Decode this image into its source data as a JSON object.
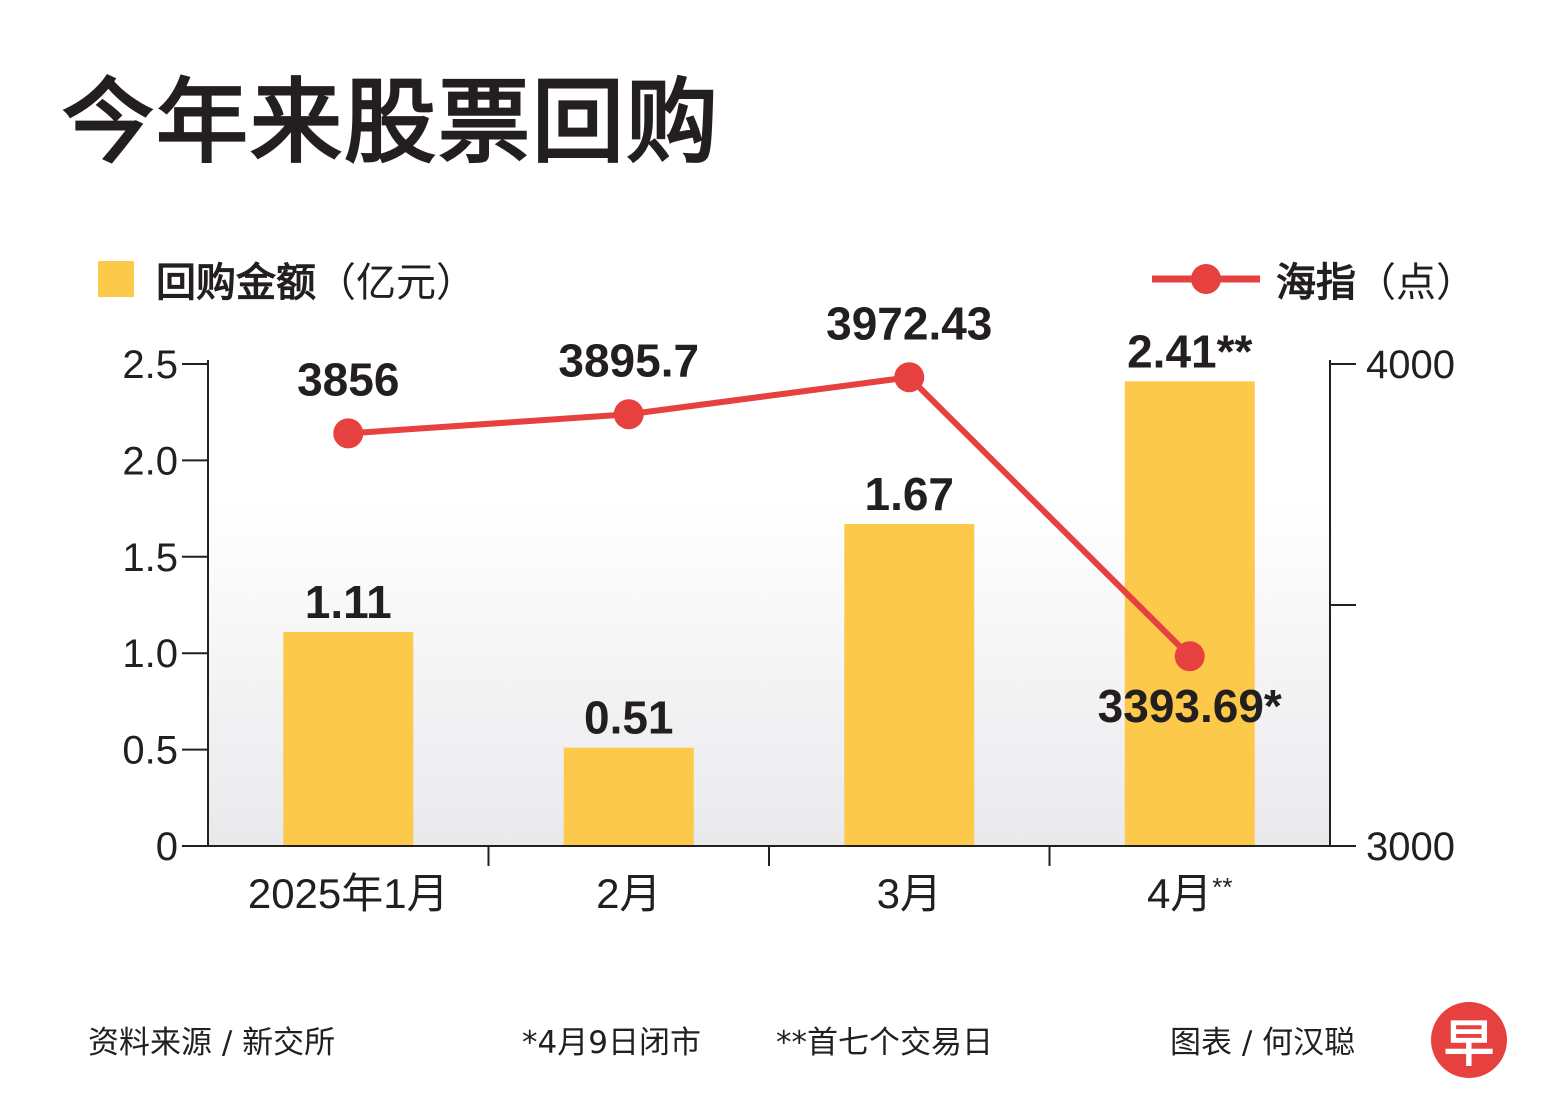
{
  "title": "今年来股票回购",
  "legend": {
    "bar_name": "回购金额",
    "bar_unit": "（亿元）",
    "line_name": "海指",
    "line_unit": "（点）"
  },
  "chart_data": {
    "type": "bar",
    "title": "今年来股票回购",
    "categories": [
      "2025年1月",
      "2月",
      "3月",
      "4月"
    ],
    "category_suffixes": [
      "",
      "",
      "",
      "**"
    ],
    "series": [
      {
        "name": "回购金额",
        "unit": "亿元",
        "type": "bar",
        "axis": "left",
        "values": [
          1.11,
          0.51,
          1.67,
          2.41
        ],
        "labels": [
          "1.11",
          "0.51",
          "1.67",
          "2.41**"
        ]
      },
      {
        "name": "海指",
        "unit": "点",
        "type": "line",
        "axis": "right",
        "values": [
          3856,
          3895.7,
          3972.43,
          3393.69
        ],
        "labels": [
          "3856",
          "3895.7",
          "3972.43",
          "3393.69*"
        ]
      }
    ],
    "left_axis": {
      "ylim": [
        0,
        2.5
      ],
      "ticks": [
        "0",
        "0.5",
        "1.0",
        "1.5",
        "2.0",
        "2.5"
      ]
    },
    "right_axis": {
      "ylim": [
        3000,
        4000
      ],
      "ticks": [
        "3000",
        "4000"
      ]
    },
    "grid": false,
    "legend_position": "top"
  },
  "colors": {
    "bar": "#fcc94a",
    "line": "#e6413f",
    "text": "#231f20",
    "axis": "#231f20",
    "plot_background_gradient": [
      "#ffffff",
      "#e9e9ec"
    ]
  },
  "footer": {
    "source": "资料来源 / 新交所",
    "note1": "*4月9日闭市",
    "note2": "**首七个交易日",
    "credit": "图表 / 何汉聪",
    "logo": "早"
  }
}
